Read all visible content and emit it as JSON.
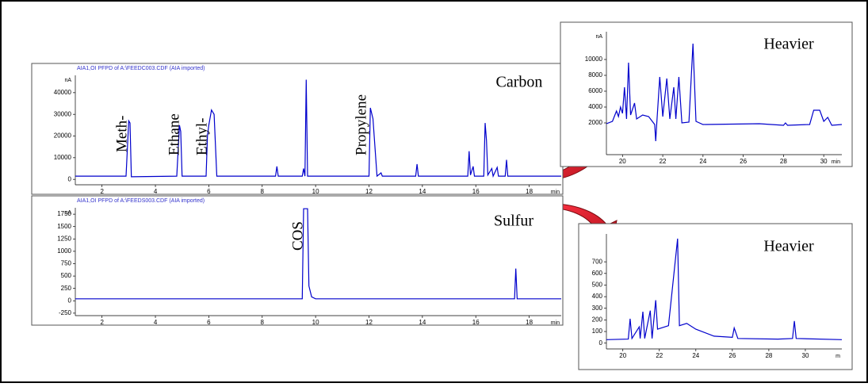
{
  "chart_data": [
    {
      "type": "line",
      "header": "AIA1,OI PFPD of A:\\FEEDC003.CDF (AIA imported)",
      "title": "Carbon",
      "y_unit": "nA",
      "x_unit": "min",
      "annotations": [
        "Meth-",
        "Ethane",
        "Ethyl-",
        "Propylene"
      ],
      "color": "#0000cc",
      "xlim": [
        1.0,
        19.2
      ],
      "ylim": [
        -2500,
        48000
      ],
      "xticks": [
        2,
        4,
        6,
        8,
        10,
        12,
        14,
        16,
        18
      ],
      "yticks": [
        0,
        10000,
        20000,
        30000,
        40000
      ],
      "x": [
        1.0,
        2.9,
        3.0,
        3.05,
        3.1,
        4.8,
        4.9,
        4.95,
        5.0,
        5.9,
        5.95,
        6.0,
        6.1,
        6.2,
        6.3,
        8.5,
        8.55,
        8.6,
        9.5,
        9.55,
        9.6,
        9.65,
        9.7,
        12.0,
        12.05,
        12.15,
        12.3,
        12.45,
        12.5,
        13.75,
        13.8,
        13.85,
        15.7,
        15.75,
        15.8,
        15.9,
        15.95,
        16.3,
        16.35,
        16.4,
        16.45,
        16.6,
        16.65,
        16.8,
        16.85,
        17.1,
        17.15,
        17.2,
        19.2
      ],
      "values": [
        1500,
        1500,
        27000,
        26000,
        1200,
        1500,
        25000,
        22000,
        1500,
        1500,
        20000,
        25000,
        32000,
        30000,
        1500,
        1500,
        6000,
        1500,
        1500,
        5000,
        1500,
        46000,
        1500,
        1500,
        33000,
        28000,
        1500,
        3000,
        1500,
        1500,
        7000,
        1500,
        1500,
        13000,
        2000,
        6000,
        1500,
        1500,
        26000,
        18000,
        2000,
        5000,
        1500,
        5500,
        1500,
        1500,
        9000,
        1500,
        1500
      ]
    },
    {
      "type": "line",
      "header": "AIA1,OI PFPD of A:\\FEEDS003.CDF (AIA imported)",
      "title": "Sulfur",
      "y_unit": "nA",
      "x_unit": "min",
      "annotations": [
        "COS"
      ],
      "color": "#0000cc",
      "xlim": [
        1.0,
        19.2
      ],
      "ylim": [
        -300,
        1880
      ],
      "xticks": [
        2,
        4,
        6,
        8,
        10,
        12,
        14,
        16,
        18
      ],
      "yticks": [
        -250,
        0,
        250,
        500,
        750,
        1000,
        1250,
        1500,
        1750
      ],
      "x": [
        1.0,
        9.5,
        9.55,
        9.7,
        9.75,
        9.85,
        10.0,
        17.45,
        17.5,
        17.55,
        19.2
      ],
      "values": [
        40,
        40,
        1860,
        1860,
        300,
        80,
        40,
        40,
        650,
        40,
        40
      ]
    },
    {
      "type": "line",
      "title": "Heavier",
      "y_unit": "nA",
      "x_unit": "min",
      "color": "#0000cc",
      "xlim": [
        19.2,
        30.9
      ],
      "ylim": [
        -2000,
        13500
      ],
      "xticks": [
        20,
        22,
        24,
        26,
        28,
        30
      ],
      "yticks": [
        2000,
        4000,
        6000,
        8000,
        10000
      ],
      "x": [
        19.2,
        19.5,
        19.7,
        19.8,
        19.9,
        20.0,
        20.1,
        20.2,
        20.3,
        20.4,
        20.6,
        20.7,
        21.0,
        21.3,
        21.6,
        21.65,
        21.7,
        21.85,
        22.0,
        22.2,
        22.35,
        22.55,
        22.65,
        22.8,
        22.95,
        23.3,
        23.5,
        23.65,
        24.0,
        26.8,
        28.0,
        28.1,
        28.2,
        29.3,
        29.5,
        29.8,
        30.0,
        30.2,
        30.4,
        30.9
      ],
      "values": [
        1900,
        2200,
        3500,
        2800,
        4000,
        3200,
        6500,
        2500,
        9600,
        3000,
        4500,
        2500,
        3000,
        2800,
        1800,
        -300,
        1900,
        7800,
        2800,
        7600,
        2500,
        6500,
        2500,
        7800,
        2000,
        2100,
        12000,
        2200,
        1800,
        1900,
        1700,
        2000,
        1700,
        1800,
        3600,
        3600,
        2200,
        2700,
        1700,
        1800
      ]
    },
    {
      "type": "line",
      "title": "Heavier",
      "x_unit": "m",
      "color": "#0000cc",
      "xlim": [
        19.1,
        32.0
      ],
      "ylim": [
        -50,
        940
      ],
      "xticks": [
        20,
        22,
        24,
        26,
        28,
        30
      ],
      "yticks": [
        0,
        100,
        200,
        300,
        400,
        500,
        600,
        700
      ],
      "x": [
        19.1,
        20.3,
        20.4,
        20.5,
        20.9,
        20.95,
        21.1,
        21.2,
        21.5,
        21.6,
        21.8,
        21.9,
        22.5,
        23.0,
        23.1,
        23.5,
        24.0,
        25.0,
        26.0,
        26.1,
        26.3,
        28.5,
        29.3,
        29.4,
        29.5,
        32.0
      ],
      "values": [
        30,
        35,
        210,
        40,
        140,
        40,
        270,
        40,
        280,
        40,
        370,
        120,
        150,
        900,
        150,
        170,
        120,
        60,
        50,
        130,
        40,
        35,
        40,
        190,
        40,
        30
      ]
    }
  ]
}
